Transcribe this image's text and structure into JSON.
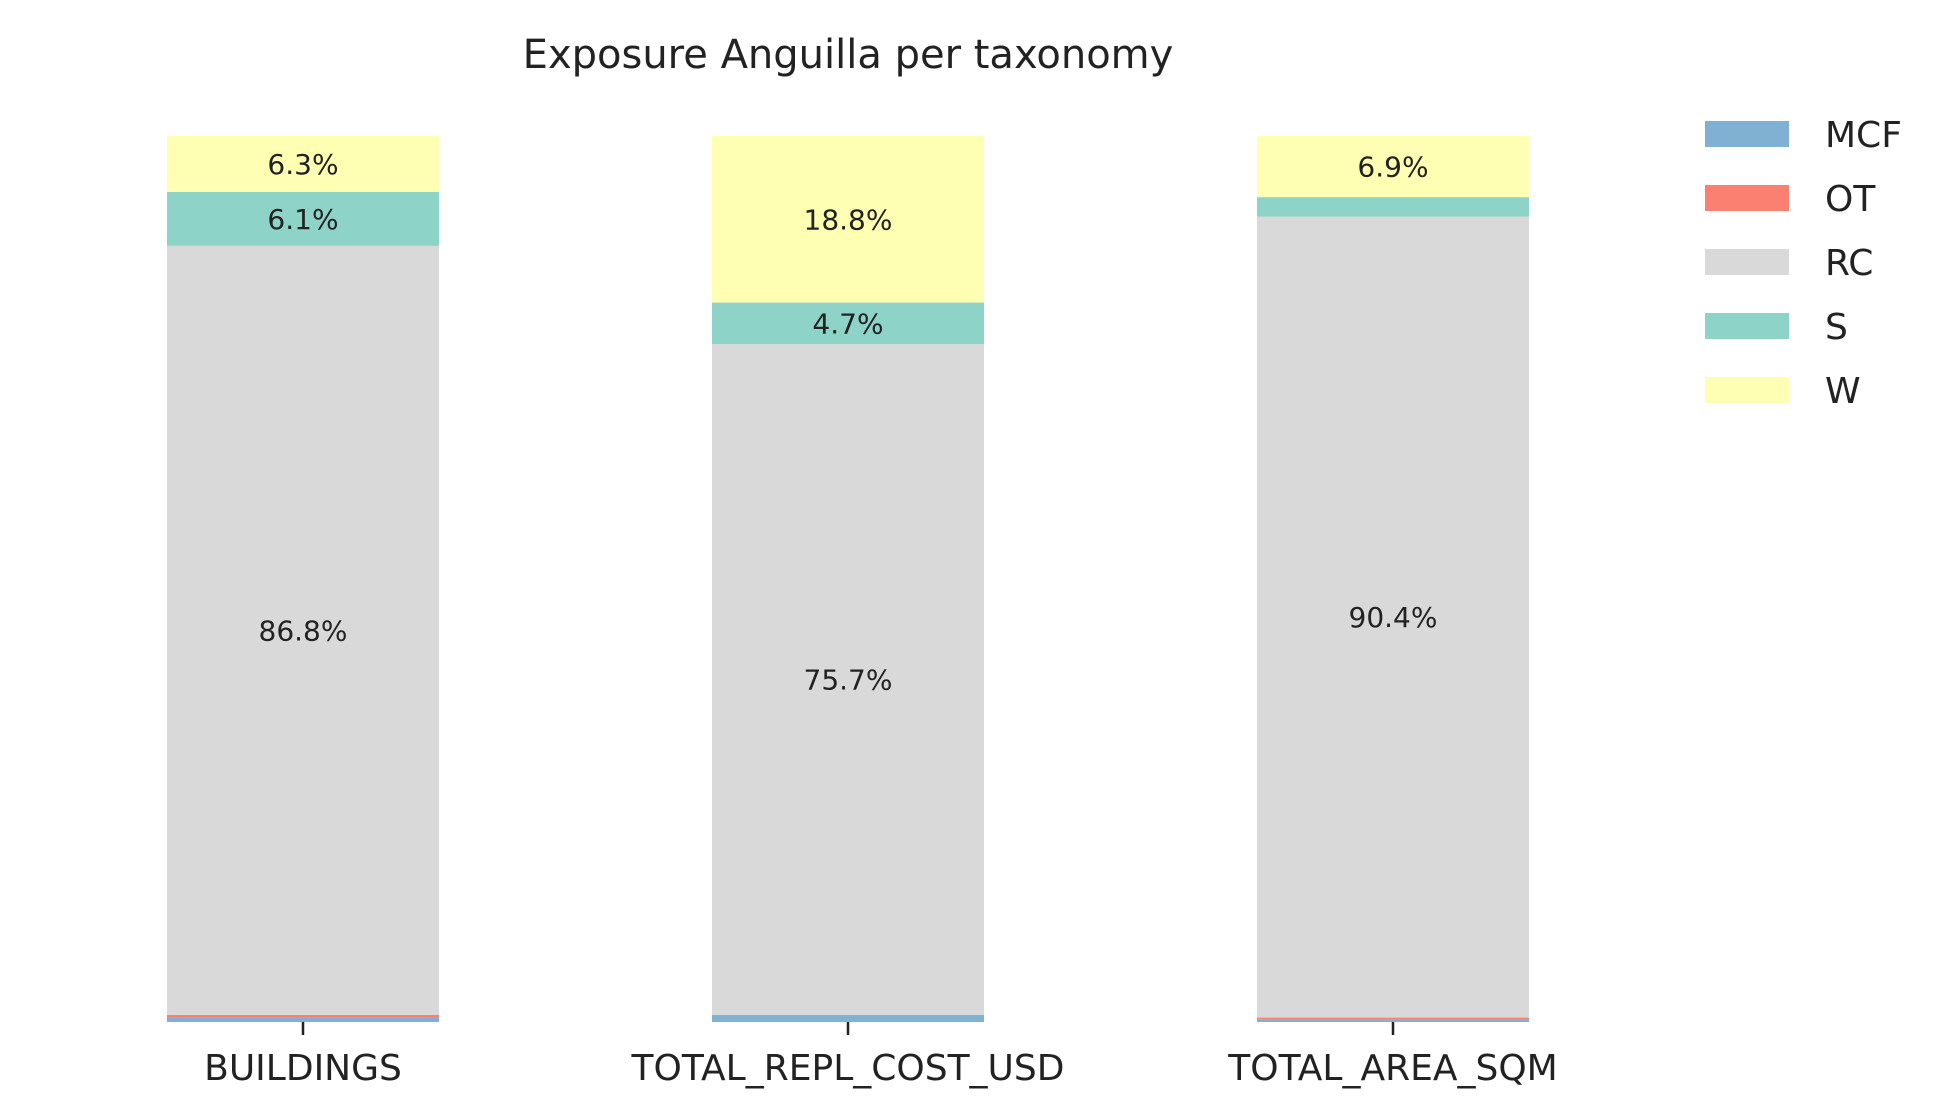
{
  "chart_data": {
    "type": "bar",
    "stacked": true,
    "normalized_percent": true,
    "title": "Exposure Anguilla per taxonomy",
    "xlabel": "",
    "ylabel": "",
    "ylim": [
      0,
      100
    ],
    "grid": false,
    "legend_position": "top-right, outside plot",
    "categories": [
      "BUILDINGS",
      "TOTAL_REPL_COST_USD",
      "TOTAL_AREA_SQM"
    ],
    "series": [
      {
        "name": "MCF",
        "color": "#80b1d3",
        "values": [
          0.5,
          0.8,
          0.3
        ]
      },
      {
        "name": "OT",
        "color": "#fb8072",
        "values": [
          0.3,
          0.0,
          0.2
        ]
      },
      {
        "name": "RC",
        "color": "#d9d9d9",
        "values": [
          86.8,
          75.7,
          90.4
        ]
      },
      {
        "name": "S",
        "color": "#8dd3c7",
        "values": [
          6.1,
          4.7,
          2.2
        ]
      },
      {
        "name": "W",
        "color": "#ffffb3",
        "values": [
          6.3,
          18.8,
          6.9
        ]
      }
    ],
    "segment_labels": [
      {
        "category": 0,
        "series": 2,
        "text": "86.8%"
      },
      {
        "category": 0,
        "series": 3,
        "text": "6.1%"
      },
      {
        "category": 0,
        "series": 4,
        "text": "6.3%"
      },
      {
        "category": 1,
        "series": 2,
        "text": "75.7%"
      },
      {
        "category": 1,
        "series": 3,
        "text": "4.7%"
      },
      {
        "category": 1,
        "series": 4,
        "text": "18.8%"
      },
      {
        "category": 2,
        "series": 2,
        "text": "90.4%"
      },
      {
        "category": 2,
        "series": 4,
        "text": "6.9%"
      }
    ]
  }
}
